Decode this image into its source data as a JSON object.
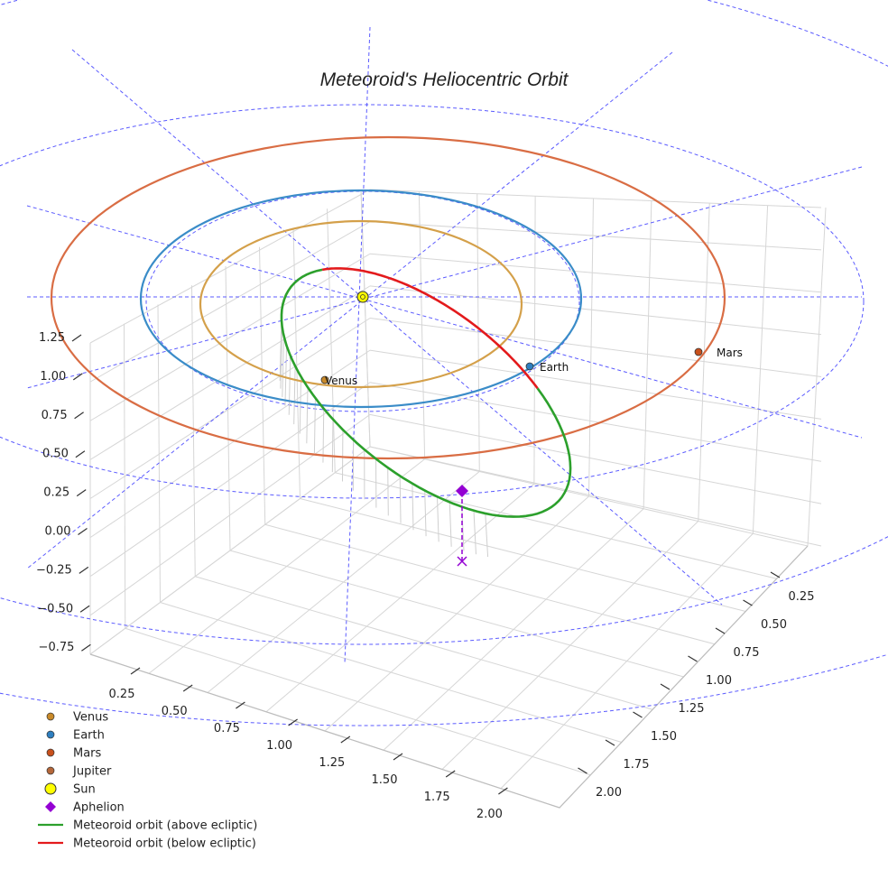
{
  "chart_data": {
    "type": "line",
    "title": "Meteoroid's Heliocentric Orbit",
    "projection": "3d",
    "axes": {
      "x": {
        "ticks": [
          "0.25",
          "0.50",
          "0.75",
          "1.00",
          "1.25",
          "1.50",
          "1.75",
          "2.00"
        ]
      },
      "y": {
        "ticks": [
          "0.25",
          "0.50",
          "0.75",
          "1.00",
          "1.25",
          "1.50",
          "1.75",
          "2.00"
        ]
      },
      "z": {
        "ticks": [
          "1.25",
          "1.00",
          "0.75",
          "0.50",
          "0.25",
          "0.00",
          "−0.25",
          "−0.50",
          "−0.75"
        ]
      }
    },
    "orbits": [
      {
        "name": "Venus orbit",
        "radius_au": 0.72,
        "color": "#d4a04a"
      },
      {
        "name": "Earth orbit",
        "radius_au": 1.0,
        "color": "#3a8cc8"
      },
      {
        "name": "Mars orbit",
        "radius_au": 1.52,
        "color": "#d96d44"
      }
    ],
    "planets": [
      {
        "name": "Venus",
        "label": "Venus",
        "color": "#c98a2a"
      },
      {
        "name": "Earth",
        "label": "Earth",
        "color": "#2e7fc0"
      },
      {
        "name": "Mars",
        "label": "Mars",
        "color": "#c8501c"
      }
    ],
    "series": [
      {
        "name": "Meteoroid orbit (above ecliptic)",
        "color": "#2ca02c"
      },
      {
        "name": "Meteoroid orbit (below ecliptic)",
        "color": "#e31a1c"
      }
    ],
    "legend": {
      "placement": "bottom-left",
      "items": [
        {
          "label": "Venus",
          "marker": "circle",
          "color": "#c98a2a"
        },
        {
          "label": "Earth",
          "marker": "circle",
          "color": "#2e7fc0"
        },
        {
          "label": "Mars",
          "marker": "circle",
          "color": "#c8501c"
        },
        {
          "label": "Jupiter",
          "marker": "circle",
          "color": "#b5673a"
        },
        {
          "label": "Sun",
          "marker": "sun",
          "color": "#ffff00"
        },
        {
          "label": "Aphelion",
          "marker": "diamond",
          "color": "#9400d3"
        },
        {
          "label": "Meteoroid orbit (above ecliptic)",
          "marker": "line",
          "color": "#2ca02c"
        },
        {
          "label": "Meteoroid orbit (below ecliptic)",
          "marker": "line",
          "color": "#e31a1c"
        }
      ]
    }
  }
}
